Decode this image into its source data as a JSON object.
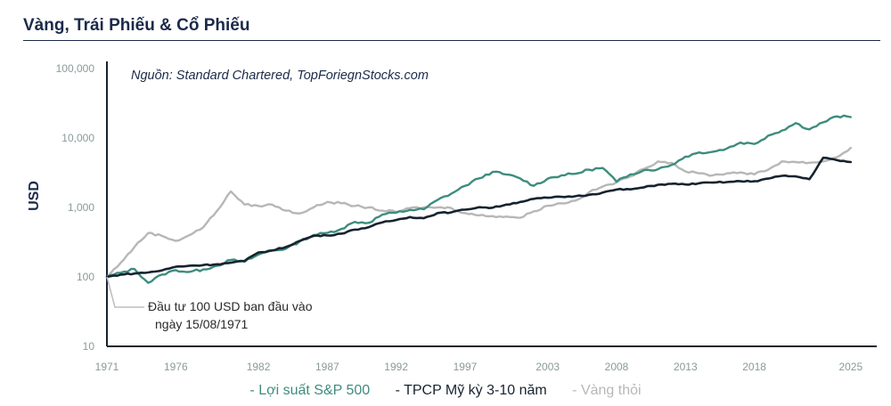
{
  "title": "Vàng, Trái Phiếu & Cổ Phiếu",
  "chart_data": {
    "type": "line",
    "title": "Vàng, Trái Phiếu & Cổ Phiếu",
    "source": "Nguồn: Standard Chartered, TopForiegnStocks.com",
    "ylabel": "USD",
    "xlabel": "",
    "yscale": "log",
    "ylim": [
      10,
      100000
    ],
    "xlim": [
      1971,
      2026.5
    ],
    "yticks": [
      {
        "value": 10,
        "label": "10"
      },
      {
        "value": 100,
        "label": "100"
      },
      {
        "value": 1000,
        "label": "1,000"
      },
      {
        "value": 10000,
        "label": "10,000"
      },
      {
        "value": 100000,
        "label": "100,000"
      }
    ],
    "xticks": [
      1971,
      1976,
      1982,
      1987,
      1992,
      1997,
      2003,
      2008,
      2013,
      2018,
      2025
    ],
    "annotation": {
      "line1": "Đầu tư 100 USD ban đầu vào",
      "line2": "ngày 15/08/1971",
      "points_to": {
        "x": 1971,
        "y": 100
      }
    },
    "series": [
      {
        "name": "Lợi suất S&P 500",
        "legend_label": "- Lợi suất S&P 500",
        "color": "#3e8c7e",
        "points": [
          [
            1971,
            100
          ],
          [
            1972,
            115
          ],
          [
            1973,
            130
          ],
          [
            1974,
            82
          ],
          [
            1975,
            108
          ],
          [
            1976,
            125
          ],
          [
            1977,
            118
          ],
          [
            1978,
            128
          ],
          [
            1979,
            145
          ],
          [
            1980,
            175
          ],
          [
            1981,
            165
          ],
          [
            1982,
            210
          ],
          [
            1983,
            240
          ],
          [
            1984,
            255
          ],
          [
            1985,
            325
          ],
          [
            1986,
            400
          ],
          [
            1987,
            430
          ],
          [
            1988,
            490
          ],
          [
            1989,
            620
          ],
          [
            1990,
            600
          ],
          [
            1991,
            790
          ],
          [
            1992,
            840
          ],
          [
            1993,
            920
          ],
          [
            1994,
            940
          ],
          [
            1995,
            1280
          ],
          [
            1996,
            1580
          ],
          [
            1997,
            2050
          ],
          [
            1998,
            2620
          ],
          [
            1999,
            3250
          ],
          [
            2000,
            2980
          ],
          [
            2001,
            2620
          ],
          [
            2002,
            2050
          ],
          [
            2003,
            2600
          ],
          [
            2004,
            2900
          ],
          [
            2005,
            3050
          ],
          [
            2006,
            3500
          ],
          [
            2007,
            3700
          ],
          [
            2008,
            2350
          ],
          [
            2009,
            3000
          ],
          [
            2010,
            3450
          ],
          [
            2011,
            3550
          ],
          [
            2012,
            4100
          ],
          [
            2013,
            5400
          ],
          [
            2014,
            6200
          ],
          [
            2015,
            6350
          ],
          [
            2016,
            7050
          ],
          [
            2017,
            8600
          ],
          [
            2018,
            8200
          ],
          [
            2019,
            10800
          ],
          [
            2020,
            12800
          ],
          [
            2021,
            16400
          ],
          [
            2022,
            13300
          ],
          [
            2023,
            16800
          ],
          [
            2024,
            20500
          ],
          [
            2025,
            20000
          ]
        ]
      },
      {
        "name": "TPCP Mỹ kỳ 3-10 năm",
        "legend_label": "- TPCP Mỹ kỳ 3-10 năm",
        "color": "#16232f",
        "points": [
          [
            1971,
            100
          ],
          [
            1972,
            108
          ],
          [
            1973,
            112
          ],
          [
            1974,
            116
          ],
          [
            1975,
            124
          ],
          [
            1976,
            140
          ],
          [
            1977,
            145
          ],
          [
            1978,
            148
          ],
          [
            1979,
            152
          ],
          [
            1980,
            160
          ],
          [
            1981,
            170
          ],
          [
            1982,
            225
          ],
          [
            1983,
            240
          ],
          [
            1984,
            270
          ],
          [
            1985,
            330
          ],
          [
            1986,
            390
          ],
          [
            1987,
            395
          ],
          [
            1988,
            420
          ],
          [
            1989,
            480
          ],
          [
            1990,
            520
          ],
          [
            1991,
            610
          ],
          [
            1992,
            660
          ],
          [
            1993,
            730
          ],
          [
            1994,
            700
          ],
          [
            1995,
            830
          ],
          [
            1996,
            850
          ],
          [
            1997,
            930
          ],
          [
            1998,
            1010
          ],
          [
            1999,
            990
          ],
          [
            2000,
            1100
          ],
          [
            2001,
            1200
          ],
          [
            2002,
            1330
          ],
          [
            2003,
            1380
          ],
          [
            2004,
            1420
          ],
          [
            2005,
            1450
          ],
          [
            2006,
            1520
          ],
          [
            2007,
            1640
          ],
          [
            2008,
            1810
          ],
          [
            2009,
            1820
          ],
          [
            2010,
            1950
          ],
          [
            2011,
            2120
          ],
          [
            2012,
            2190
          ],
          [
            2013,
            2140
          ],
          [
            2014,
            2230
          ],
          [
            2015,
            2280
          ],
          [
            2016,
            2320
          ],
          [
            2017,
            2380
          ],
          [
            2018,
            2380
          ],
          [
            2019,
            2600
          ],
          [
            2020,
            2850
          ],
          [
            2021,
            2800
          ],
          [
            2022,
            2550
          ],
          [
            2023,
            5200
          ],
          [
            2024,
            4800
          ],
          [
            2025,
            4500
          ]
        ]
      },
      {
        "name": "Vàng thỏi",
        "legend_label": "- Vàng thỏi",
        "color": "#b7b7b7",
        "points": [
          [
            1971,
            100
          ],
          [
            1972,
            160
          ],
          [
            1973,
            270
          ],
          [
            1974,
            430
          ],
          [
            1975,
            390
          ],
          [
            1976,
            330
          ],
          [
            1977,
            400
          ],
          [
            1978,
            520
          ],
          [
            1979,
            900
          ],
          [
            1980,
            1700
          ],
          [
            1981,
            1100
          ],
          [
            1982,
            1050
          ],
          [
            1983,
            1100
          ],
          [
            1984,
            900
          ],
          [
            1985,
            820
          ],
          [
            1986,
            1000
          ],
          [
            1987,
            1200
          ],
          [
            1988,
            1150
          ],
          [
            1989,
            1050
          ],
          [
            1990,
            1000
          ],
          [
            1991,
            900
          ],
          [
            1992,
            860
          ],
          [
            1993,
            980
          ],
          [
            1994,
            1000
          ],
          [
            1995,
            1000
          ],
          [
            1996,
            980
          ],
          [
            1997,
            830
          ],
          [
            1998,
            770
          ],
          [
            1999,
            750
          ],
          [
            2000,
            740
          ],
          [
            2001,
            710
          ],
          [
            2002,
            880
          ],
          [
            2003,
            1060
          ],
          [
            2004,
            1150
          ],
          [
            2005,
            1250
          ],
          [
            2006,
            1650
          ],
          [
            2007,
            2000
          ],
          [
            2008,
            2300
          ],
          [
            2009,
            2800
          ],
          [
            2010,
            3600
          ],
          [
            2011,
            4600
          ],
          [
            2012,
            4400
          ],
          [
            2013,
            3300
          ],
          [
            2014,
            3100
          ],
          [
            2015,
            2900
          ],
          [
            2016,
            3100
          ],
          [
            2017,
            3200
          ],
          [
            2018,
            3000
          ],
          [
            2019,
            3500
          ],
          [
            2020,
            4600
          ],
          [
            2021,
            4500
          ],
          [
            2022,
            4400
          ],
          [
            2023,
            4600
          ],
          [
            2024,
            5300
          ],
          [
            2025,
            7200
          ]
        ]
      }
    ]
  }
}
